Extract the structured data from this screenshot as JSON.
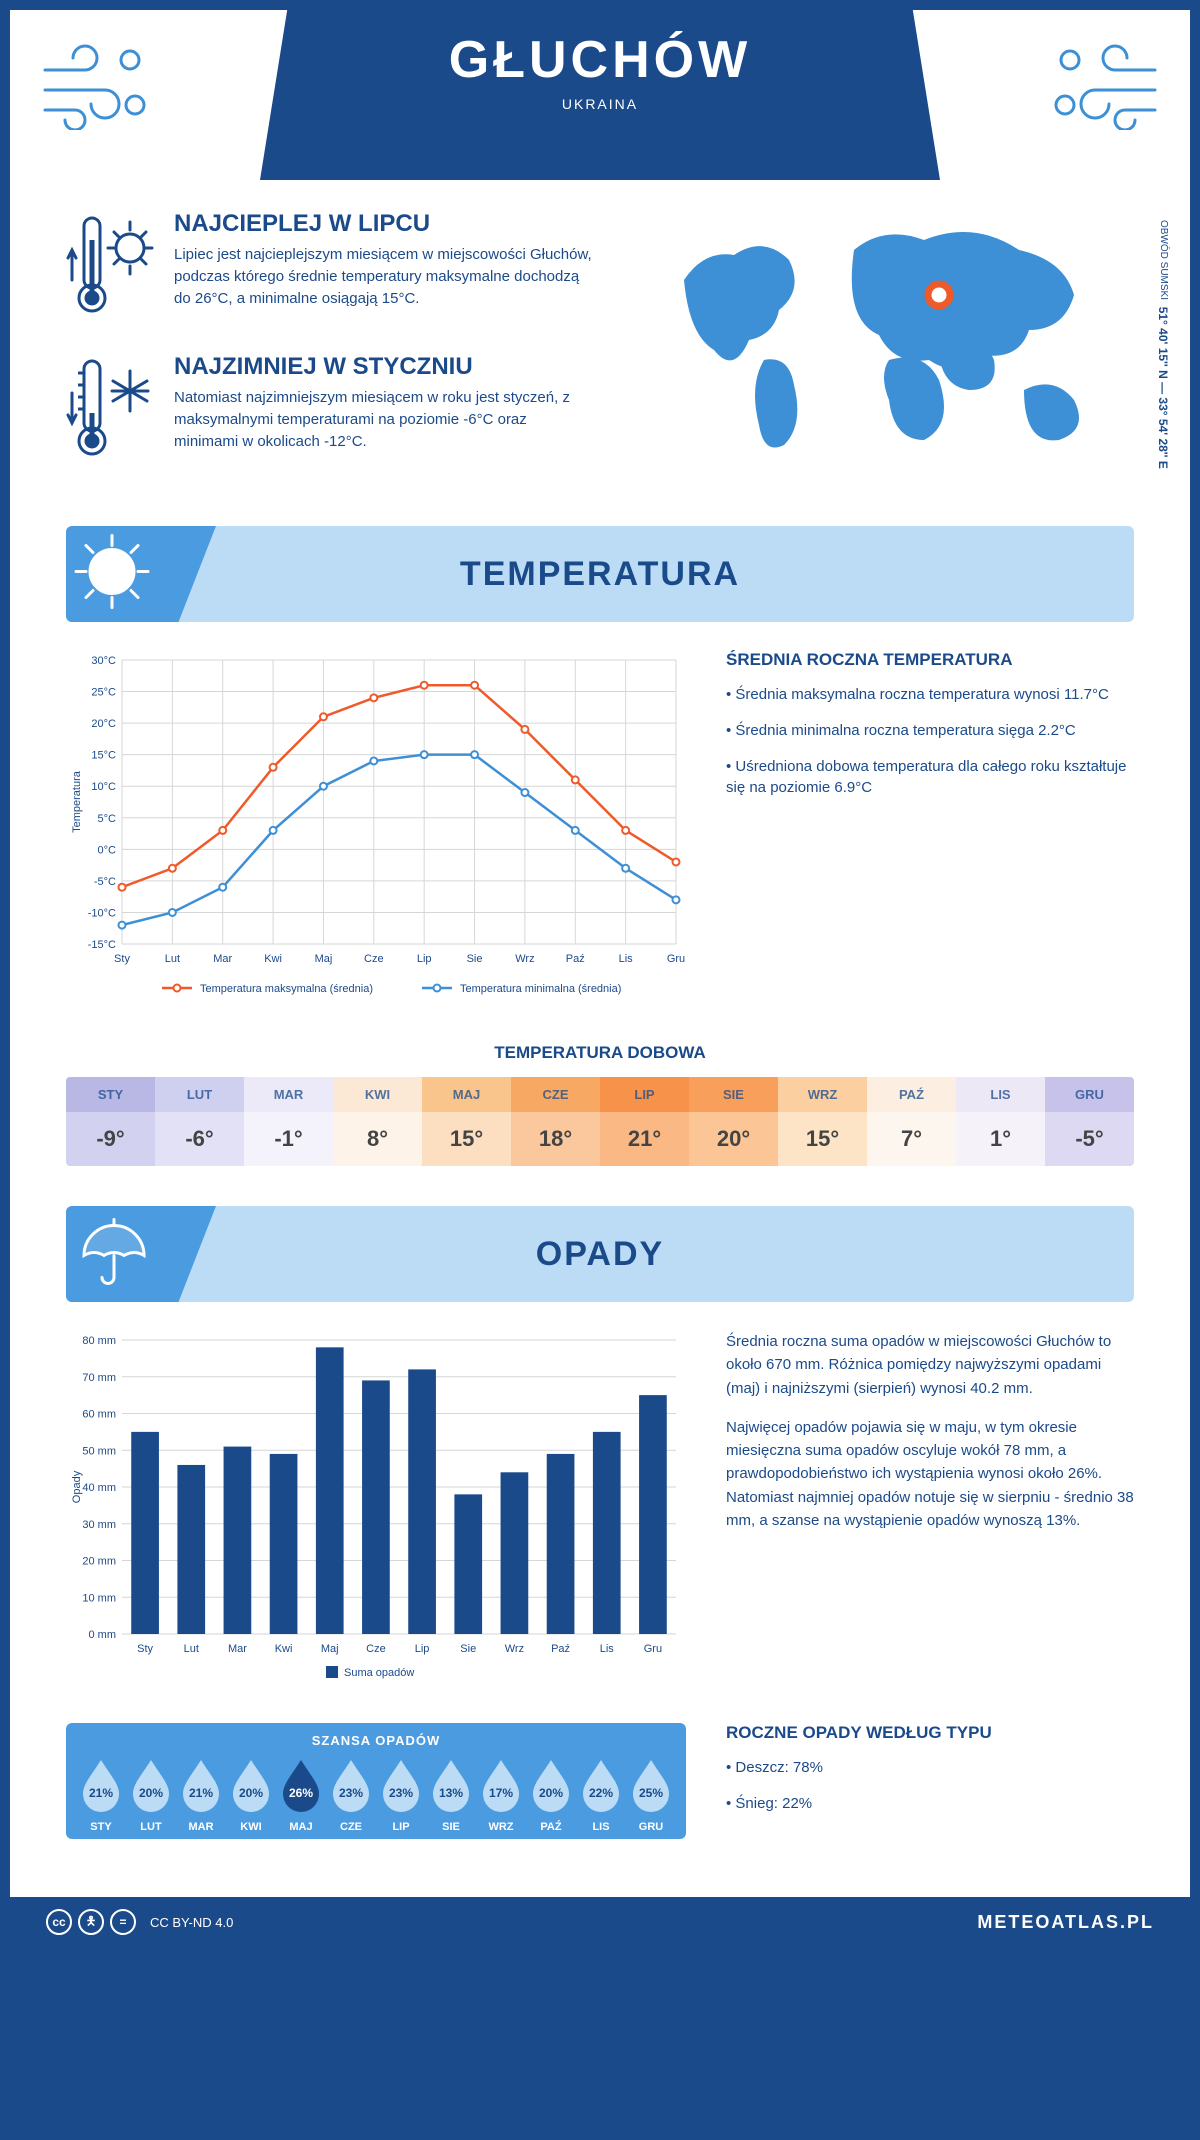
{
  "header": {
    "city": "GŁUCHÓW",
    "country": "UKRAINA"
  },
  "coords": {
    "text": "51° 40' 15'' N — 33° 54' 28'' E",
    "region": "OBWÓD SUMSKI"
  },
  "facts": {
    "hot": {
      "title": "NAJCIEPLEJ W LIPCU",
      "text": "Lipiec jest najcieplejszym miesiącem w miejscowości Głuchów, podczas którego średnie temperatury maksymalne dochodzą do 26°C, a minimalne osiągają 15°C."
    },
    "cold": {
      "title": "NAJZIMNIEJ W STYCZNIU",
      "text": "Natomiast najzimniejszym miesiącem w roku jest styczeń, z maksymalnymi temperaturami na poziomie -6°C oraz minimami w okolicach -12°C."
    }
  },
  "sections": {
    "temp_title": "TEMPERATURA",
    "precip_title": "OPADY"
  },
  "temp_chart": {
    "type": "line",
    "months": [
      "Sty",
      "Lut",
      "Mar",
      "Kwi",
      "Maj",
      "Cze",
      "Lip",
      "Sie",
      "Wrz",
      "Paź",
      "Lis",
      "Gru"
    ],
    "max_values": [
      -6,
      -3,
      3,
      13,
      21,
      24,
      26,
      26,
      19,
      11,
      3,
      -2
    ],
    "min_values": [
      -12,
      -10,
      -6,
      3,
      10,
      14,
      15,
      15,
      9,
      3,
      -3,
      -8
    ],
    "max_color": "#ee5a2a",
    "min_color": "#3d8fd6",
    "grid_color": "#d6d6d6",
    "ylim": [
      -15,
      30
    ],
    "ytick_step": 5,
    "ylabel": "Temperatura",
    "legend_max": "Temperatura maksymalna (średnia)",
    "legend_min": "Temperatura minimalna (średnia)"
  },
  "temp_side": {
    "title": "ŚREDNIA ROCZNA TEMPERATURA",
    "items": [
      "Średnia maksymalna roczna temperatura wynosi 11.7°C",
      "Średnia minimalna roczna temperatura sięga 2.2°C",
      "Uśredniona dobowa temperatura dla całego roku kształtuje się na poziomie 6.9°C"
    ]
  },
  "daily": {
    "title": "TEMPERATURA DOBOWA",
    "months": [
      "STY",
      "LUT",
      "MAR",
      "KWI",
      "MAJ",
      "CZE",
      "LIP",
      "SIE",
      "WRZ",
      "PAŹ",
      "LIS",
      "GRU"
    ],
    "values": [
      "-9°",
      "-6°",
      "-1°",
      "8°",
      "15°",
      "18°",
      "21°",
      "20°",
      "15°",
      "7°",
      "1°",
      "-5°"
    ],
    "head_colors": [
      "#b9b8e5",
      "#cfcfef",
      "#ece9f8",
      "#fbe9d5",
      "#f9c58c",
      "#f7a863",
      "#f6924a",
      "#f79f5b",
      "#fbcf9f",
      "#fceee0",
      "#ede8f6",
      "#c7c2ea"
    ],
    "body_colors": [
      "#d2d1ef",
      "#e2e1f5",
      "#f4f2fb",
      "#fdf3e9",
      "#fcdec0",
      "#fbc79c",
      "#fab984",
      "#fbc595",
      "#fde4c7",
      "#fdf6ee",
      "#f5f2fa",
      "#ddd9f2"
    ]
  },
  "precip_chart": {
    "type": "bar",
    "months": [
      "Sty",
      "Lut",
      "Mar",
      "Kwi",
      "Maj",
      "Cze",
      "Lip",
      "Sie",
      "Wrz",
      "Paź",
      "Lis",
      "Gru"
    ],
    "values": [
      55,
      46,
      51,
      49,
      78,
      69,
      72,
      38,
      44,
      49,
      55,
      65
    ],
    "bar_color": "#1b4a8a",
    "grid_color": "#d6d6d6",
    "ylim": [
      0,
      80
    ],
    "ytick_step": 10,
    "ylabel": "Opady",
    "legend": "Suma opadów"
  },
  "precip_side": {
    "p1": "Średnia roczna suma opadów w miejscowości Głuchów to około 670 mm. Różnica pomiędzy najwyższymi opadami (maj) i najniższymi (sierpień) wynosi 40.2 mm.",
    "p2": "Najwięcej opadów pojawia się w maju, w tym okresie miesięczna suma opadów oscyluje wokół 78 mm, a prawdopodobieństwo ich wystąpienia wynosi około 26%. Natomiast najmniej opadów notuje się w sierpniu - średnio 38 mm, a szanse na wystąpienie opadów wynoszą 13%.",
    "type_title": "ROCZNE OPADY WEDŁUG TYPU",
    "type_items": [
      "Deszcz: 78%",
      "Śnieg: 22%"
    ]
  },
  "chance": {
    "title": "SZANSA OPADÓW",
    "months": [
      "STY",
      "LUT",
      "MAR",
      "KWI",
      "MAJ",
      "CZE",
      "LIP",
      "SIE",
      "WRZ",
      "PAŹ",
      "LIS",
      "GRU"
    ],
    "values": [
      "21%",
      "20%",
      "21%",
      "20%",
      "26%",
      "23%",
      "23%",
      "13%",
      "17%",
      "20%",
      "22%",
      "25%"
    ],
    "max_index": 4,
    "drop_fill": "#bcdcf5",
    "drop_fill_active": "#1b4a8a"
  },
  "footer": {
    "license": "CC BY-ND 4.0",
    "site": "METEOATLAS.PL"
  }
}
